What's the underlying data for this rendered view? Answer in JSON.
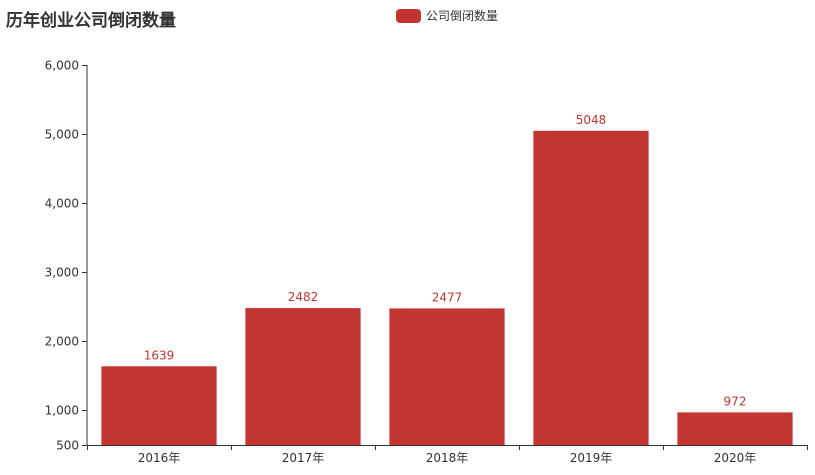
{
  "chart_data": {
    "type": "bar",
    "title": "历年创业公司倒闭数量",
    "categories": [
      "2016年",
      "2017年",
      "2018年",
      "2019年",
      "2020年"
    ],
    "series": [
      {
        "name": "公司倒闭数量",
        "values": [
          1639,
          2482,
          2477,
          5048,
          972
        ]
      }
    ],
    "ylim": [
      500,
      6000
    ],
    "yticks": [
      500,
      1000,
      2000,
      3000,
      4000,
      5000,
      6000
    ],
    "ytick_labels": [
      "500",
      "1,000",
      "2,000",
      "3,000",
      "4,000",
      "5,000",
      "6,000"
    ],
    "data_labels": true,
    "legend_position": "top-center",
    "grid": false,
    "color": "#c23531"
  }
}
